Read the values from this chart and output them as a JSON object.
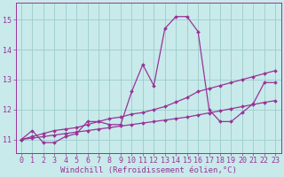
{
  "xlabel": "Windchill (Refroidissement éolien,°C)",
  "bg_color": "#c8eaea",
  "line_color": "#993399",
  "grid_color": "#9dcccc",
  "xlim": [
    -0.5,
    23.5
  ],
  "ylim": [
    10.55,
    15.55
  ],
  "yticks": [
    11,
    12,
    13,
    14,
    15
  ],
  "xticks": [
    0,
    1,
    2,
    3,
    4,
    5,
    6,
    7,
    8,
    9,
    10,
    11,
    12,
    13,
    14,
    15,
    16,
    17,
    18,
    19,
    20,
    21,
    22,
    23
  ],
  "series": [
    [
      11.0,
      11.3,
      10.9,
      10.9,
      11.1,
      11.2,
      11.6,
      11.6,
      11.5,
      11.5,
      12.6,
      13.5,
      12.8,
      14.7,
      15.1,
      15.1,
      14.6,
      12.0,
      11.6,
      11.6,
      11.9,
      12.2,
      12.9,
      12.9
    ],
    [
      11.0,
      11.05,
      11.1,
      11.15,
      11.2,
      11.25,
      11.3,
      11.35,
      11.4,
      11.45,
      11.5,
      11.55,
      11.6,
      11.65,
      11.7,
      11.75,
      11.82,
      11.89,
      11.96,
      12.03,
      12.1,
      12.17,
      12.24,
      12.3
    ],
    [
      11.0,
      11.1,
      11.2,
      11.3,
      11.35,
      11.4,
      11.5,
      11.6,
      11.7,
      11.75,
      11.85,
      11.9,
      12.0,
      12.1,
      12.25,
      12.4,
      12.6,
      12.7,
      12.8,
      12.9,
      13.0,
      13.1,
      13.2,
      13.3
    ]
  ],
  "xlabel_fontsize": 6.5,
  "tick_fontsize": 6,
  "marker": "D",
  "markersize": 2.0,
  "linewidth": 0.9
}
